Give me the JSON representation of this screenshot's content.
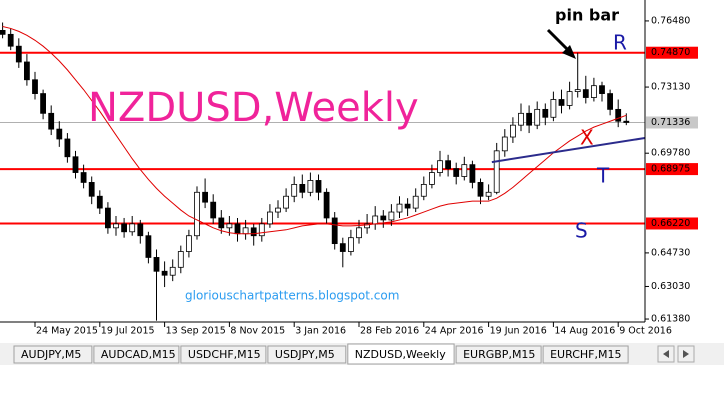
{
  "chart_data": {
    "type": "candlestick",
    "title": "NZDUSD,Weekly",
    "watermark": "gloriouschartpatterns.blogspot.com",
    "annotations": {
      "pin_bar": "pin bar",
      "r": "R",
      "x": "X",
      "t": "T",
      "s": "S"
    },
    "categories": [
      null,
      null,
      null,
      null,
      "24 May 2015",
      null,
      null,
      null,
      null,
      null,
      null,
      null,
      "19 Jul 2015",
      null,
      null,
      null,
      null,
      null,
      null,
      null,
      "13 Sep 2015",
      null,
      null,
      null,
      null,
      null,
      null,
      null,
      "8 Nov 2015",
      null,
      null,
      null,
      null,
      null,
      null,
      null,
      "3 Jan 2016",
      null,
      null,
      null,
      null,
      null,
      null,
      null,
      "28 Feb 2016",
      null,
      null,
      null,
      null,
      null,
      null,
      null,
      "24 Apr 2016",
      null,
      null,
      null,
      null,
      null,
      null,
      null,
      "19 Jun 2016",
      null,
      null,
      null,
      null,
      null,
      null,
      null,
      "14 Aug 2016",
      null,
      null,
      null,
      null,
      null,
      null,
      null,
      "9 Oct 2016",
      null
    ],
    "candles": [
      [
        0.76,
        0.764,
        0.756,
        0.758
      ],
      [
        0.758,
        0.761,
        0.75,
        0.752
      ],
      [
        0.752,
        0.756,
        0.741,
        0.744
      ],
      [
        0.744,
        0.748,
        0.732,
        0.735
      ],
      [
        0.735,
        0.739,
        0.725,
        0.728
      ],
      [
        0.728,
        0.73,
        0.715,
        0.718
      ],
      [
        0.718,
        0.722,
        0.707,
        0.71
      ],
      [
        0.71,
        0.714,
        0.701,
        0.705
      ],
      [
        0.705,
        0.708,
        0.693,
        0.696
      ],
      [
        0.696,
        0.699,
        0.685,
        0.688
      ],
      [
        0.688,
        0.692,
        0.68,
        0.683
      ],
      [
        0.683,
        0.686,
        0.672,
        0.676
      ],
      [
        0.676,
        0.679,
        0.667,
        0.67
      ],
      [
        0.67,
        0.673,
        0.657,
        0.66
      ],
      [
        0.66,
        0.666,
        0.656,
        0.662
      ],
      [
        0.662,
        0.665,
        0.655,
        0.658
      ],
      [
        0.658,
        0.666,
        0.656,
        0.662
      ],
      [
        0.662,
        0.664,
        0.652,
        0.656
      ],
      [
        0.656,
        0.658,
        0.642,
        0.645
      ],
      [
        0.645,
        0.649,
        0.613,
        0.638
      ],
      [
        0.638,
        0.643,
        0.63,
        0.636
      ],
      [
        0.636,
        0.644,
        0.633,
        0.64
      ],
      [
        0.64,
        0.651,
        0.637,
        0.648
      ],
      [
        0.648,
        0.659,
        0.645,
        0.656
      ],
      [
        0.656,
        0.681,
        0.654,
        0.678
      ],
      [
        0.678,
        0.685,
        0.67,
        0.673
      ],
      [
        0.673,
        0.677,
        0.662,
        0.665
      ],
      [
        0.665,
        0.669,
        0.657,
        0.66
      ],
      [
        0.66,
        0.666,
        0.656,
        0.662
      ],
      [
        0.662,
        0.665,
        0.653,
        0.657
      ],
      [
        0.657,
        0.664,
        0.654,
        0.66
      ],
      [
        0.66,
        0.662,
        0.651,
        0.656
      ],
      [
        0.656,
        0.665,
        0.653,
        0.662
      ],
      [
        0.662,
        0.672,
        0.66,
        0.668
      ],
      [
        0.668,
        0.674,
        0.665,
        0.67
      ],
      [
        0.67,
        0.68,
        0.668,
        0.676
      ],
      [
        0.676,
        0.686,
        0.673,
        0.682
      ],
      [
        0.682,
        0.687,
        0.675,
        0.678
      ],
      [
        0.678,
        0.688,
        0.676,
        0.684
      ],
      [
        0.684,
        0.687,
        0.674,
        0.678
      ],
      [
        0.678,
        0.68,
        0.662,
        0.665
      ],
      [
        0.665,
        0.668,
        0.649,
        0.652
      ],
      [
        0.652,
        0.655,
        0.64,
        0.648
      ],
      [
        0.648,
        0.659,
        0.646,
        0.655
      ],
      [
        0.655,
        0.664,
        0.652,
        0.66
      ],
      [
        0.66,
        0.667,
        0.657,
        0.662
      ],
      [
        0.662,
        0.671,
        0.659,
        0.666
      ],
      [
        0.666,
        0.669,
        0.66,
        0.664
      ],
      [
        0.664,
        0.672,
        0.661,
        0.668
      ],
      [
        0.668,
        0.676,
        0.665,
        0.672
      ],
      [
        0.672,
        0.675,
        0.666,
        0.67
      ],
      [
        0.67,
        0.68,
        0.668,
        0.676
      ],
      [
        0.676,
        0.686,
        0.674,
        0.682
      ],
      [
        0.682,
        0.692,
        0.68,
        0.688
      ],
      [
        0.688,
        0.699,
        0.686,
        0.694
      ],
      [
        0.694,
        0.697,
        0.686,
        0.69
      ],
      [
        0.69,
        0.693,
        0.682,
        0.686
      ],
      [
        0.686,
        0.696,
        0.684,
        0.692
      ],
      [
        0.692,
        0.694,
        0.68,
        0.683
      ],
      [
        0.683,
        0.685,
        0.672,
        0.676
      ],
      [
        0.676,
        0.682,
        0.674,
        0.678
      ],
      [
        0.678,
        0.703,
        0.677,
        0.699
      ],
      [
        0.699,
        0.71,
        0.696,
        0.706
      ],
      [
        0.706,
        0.716,
        0.703,
        0.712
      ],
      [
        0.712,
        0.723,
        0.709,
        0.718
      ],
      [
        0.718,
        0.722,
        0.708,
        0.712
      ],
      [
        0.712,
        0.724,
        0.71,
        0.72
      ],
      [
        0.72,
        0.723,
        0.712,
        0.716
      ],
      [
        0.716,
        0.729,
        0.714,
        0.725
      ],
      [
        0.725,
        0.73,
        0.718,
        0.722
      ],
      [
        0.722,
        0.734,
        0.72,
        0.729
      ],
      [
        0.729,
        0.7487,
        0.726,
        0.73
      ],
      [
        0.73,
        0.737,
        0.723,
        0.726
      ],
      [
        0.726,
        0.736,
        0.724,
        0.732
      ],
      [
        0.732,
        0.734,
        0.724,
        0.728
      ],
      [
        0.728,
        0.73,
        0.717,
        0.72
      ],
      [
        0.72,
        0.725,
        0.711,
        0.714
      ],
      [
        0.714,
        0.718,
        0.712,
        0.71336
      ]
    ],
    "moving_average": {
      "color": "#e00000",
      "values": [
        0.762,
        0.761,
        0.7595,
        0.7575,
        0.755,
        0.752,
        0.7485,
        0.7445,
        0.74,
        0.735,
        0.73,
        0.7245,
        0.719,
        0.713,
        0.707,
        0.701,
        0.695,
        0.6895,
        0.6845,
        0.68,
        0.676,
        0.6725,
        0.669,
        0.666,
        0.664,
        0.662,
        0.66,
        0.6585,
        0.6575,
        0.657,
        0.657,
        0.657,
        0.6575,
        0.658,
        0.6585,
        0.659,
        0.66,
        0.661,
        0.6615,
        0.662,
        0.662,
        0.6615,
        0.661,
        0.661,
        0.6612,
        0.6615,
        0.662,
        0.6625,
        0.663,
        0.664,
        0.665,
        0.6665,
        0.668,
        0.6695,
        0.671,
        0.672,
        0.6725,
        0.673,
        0.6735,
        0.6735,
        0.6735,
        0.675,
        0.6775,
        0.6805,
        0.684,
        0.6875,
        0.691,
        0.6945,
        0.698,
        0.701,
        0.704,
        0.7065,
        0.709,
        0.711,
        0.7125,
        0.714,
        0.7155,
        0.717
      ]
    },
    "trendline": {
      "color": "#2b2b8c",
      "x": [
        60.4,
        79.3
      ],
      "y": [
        0.6933,
        0.7055
      ]
    },
    "levels": [
      {
        "value": 0.7487,
        "label": "0.74870"
      },
      {
        "value": 0.68975,
        "label": "0.68975"
      },
      {
        "value": 0.6622,
        "label": "0.66220"
      }
    ],
    "level_color": "#ff0000",
    "current_price": 0.71336,
    "ylim": [
      0.6123,
      0.7754
    ],
    "yticks": [
      {
        "value": 0.7648,
        "label": "0.76480"
      },
      {
        "value": 0.7313,
        "label": "0.73130"
      },
      {
        "value": 0.6978,
        "label": "0.69780"
      },
      {
        "value": 0.6473,
        "label": "0.64730"
      },
      {
        "value": 0.6303,
        "label": "0.63030"
      },
      {
        "value": 0.6138,
        "label": "0.61380"
      }
    ]
  },
  "tabs": [
    "AUDJPY,M5",
    "AUDCAD,M15",
    "USDCHF,M15",
    "USDJPY,M5",
    "NZDUSD,Weekly",
    "EURGBP,M15",
    "EURCHF,M15"
  ],
  "active_tab": 4
}
